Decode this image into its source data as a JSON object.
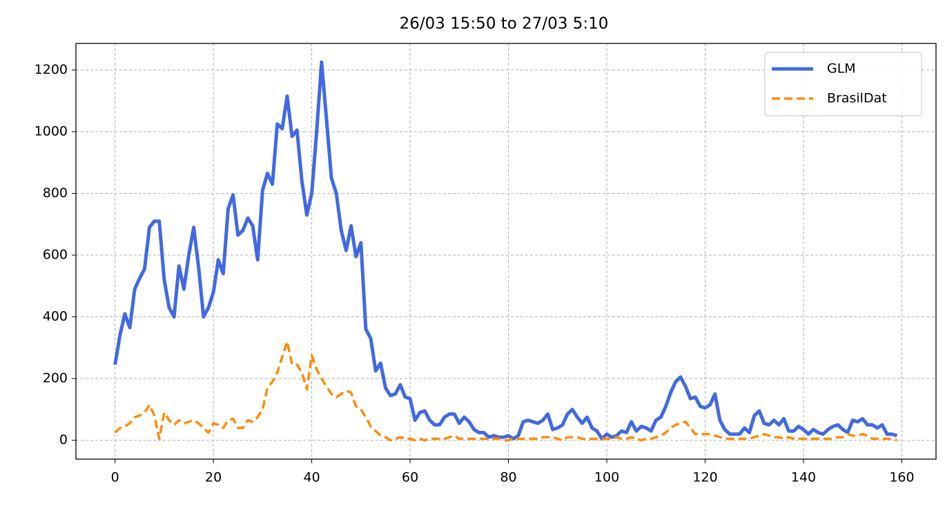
{
  "chart_data": {
    "type": "line",
    "title": "26/03 15:50 to 27/03 5:10",
    "x": [
      0,
      1,
      2,
      3,
      4,
      5,
      6,
      7,
      8,
      9,
      10,
      11,
      12,
      13,
      14,
      15,
      16,
      17,
      18,
      19,
      20,
      21,
      22,
      23,
      24,
      25,
      26,
      27,
      28,
      29,
      30,
      31,
      32,
      33,
      34,
      35,
      36,
      37,
      38,
      39,
      40,
      41,
      42,
      43,
      44,
      45,
      46,
      47,
      48,
      49,
      50,
      51,
      52,
      53,
      54,
      55,
      56,
      57,
      58,
      59,
      60,
      61,
      62,
      63,
      64,
      65,
      66,
      67,
      68,
      69,
      70,
      71,
      72,
      73,
      74,
      75,
      76,
      77,
      78,
      79,
      80,
      81,
      82,
      83,
      84,
      85,
      86,
      87,
      88,
      89,
      90,
      91,
      92,
      93,
      94,
      95,
      96,
      97,
      98,
      99,
      100,
      101,
      102,
      103,
      104,
      105,
      106,
      107,
      108,
      109,
      110,
      111,
      112,
      113,
      114,
      115,
      116,
      117,
      118,
      119,
      120,
      121,
      122,
      123,
      124,
      125,
      126,
      127,
      128,
      129,
      130,
      131,
      132,
      133,
      134,
      135,
      136,
      137,
      138,
      139,
      140,
      141,
      142,
      143,
      144,
      145,
      146,
      147,
      148,
      149,
      150,
      151,
      152,
      153,
      154,
      155,
      156,
      157,
      158,
      159
    ],
    "series": [
      {
        "name": "GLM",
        "color": "#4169e1",
        "style": "solid",
        "values": [
          245,
          340,
          410,
          365,
          490,
          525,
          555,
          690,
          710,
          710,
          520,
          430,
          400,
          565,
          490,
          600,
          690,
          560,
          400,
          430,
          480,
          585,
          540,
          750,
          795,
          665,
          680,
          720,
          695,
          585,
          810,
          865,
          830,
          1025,
          1010,
          1115,
          985,
          1005,
          840,
          730,
          800,
          1000,
          1225,
          1040,
          850,
          800,
          680,
          615,
          695,
          595,
          640,
          360,
          330,
          225,
          250,
          170,
          145,
          150,
          180,
          140,
          135,
          65,
          90,
          95,
          65,
          50,
          50,
          75,
          85,
          85,
          55,
          75,
          60,
          35,
          25,
          25,
          10,
          15,
          10,
          10,
          15,
          5,
          15,
          60,
          65,
          60,
          55,
          65,
          85,
          35,
          40,
          50,
          85,
          100,
          75,
          55,
          75,
          40,
          30,
          5,
          20,
          10,
          15,
          30,
          25,
          60,
          30,
          45,
          40,
          30,
          65,
          75,
          110,
          155,
          190,
          205,
          175,
          135,
          140,
          110,
          105,
          115,
          150,
          65,
          35,
          20,
          20,
          20,
          40,
          25,
          80,
          95,
          55,
          50,
          65,
          50,
          70,
          30,
          30,
          45,
          35,
          20,
          35,
          25,
          20,
          35,
          45,
          50,
          35,
          25,
          65,
          60,
          70,
          50,
          50,
          40,
          50,
          20,
          20,
          15
        ]
      },
      {
        "name": "BrasilDat",
        "color": "#ff8c00",
        "style": "dashed",
        "values": [
          25,
          40,
          45,
          55,
          75,
          80,
          90,
          115,
          80,
          5,
          90,
          65,
          50,
          65,
          55,
          60,
          65,
          55,
          40,
          25,
          55,
          50,
          40,
          65,
          70,
          40,
          40,
          65,
          60,
          75,
          100,
          170,
          190,
          220,
          270,
          320,
          245,
          245,
          220,
          165,
          275,
          230,
          200,
          175,
          150,
          140,
          150,
          160,
          155,
          110,
          100,
          75,
          45,
          30,
          15,
          10,
          0,
          5,
          10,
          5,
          5,
          0,
          5,
          0,
          5,
          5,
          5,
          5,
          10,
          15,
          5,
          5,
          5,
          5,
          5,
          5,
          5,
          5,
          5,
          0,
          0,
          5,
          5,
          5,
          5,
          5,
          5,
          10,
          10,
          10,
          5,
          0,
          10,
          10,
          10,
          5,
          5,
          5,
          5,
          5,
          5,
          5,
          10,
          5,
          5,
          10,
          5,
          0,
          5,
          5,
          10,
          15,
          25,
          40,
          50,
          55,
          60,
          40,
          20,
          20,
          20,
          20,
          15,
          10,
          5,
          5,
          5,
          5,
          5,
          5,
          10,
          15,
          20,
          15,
          10,
          10,
          5,
          10,
          5,
          5,
          5,
          5,
          5,
          5,
          5,
          5,
          5,
          10,
          10,
          20,
          15,
          15,
          20,
          15,
          5,
          5,
          5,
          5,
          5,
          0
        ]
      }
    ],
    "xlim": [
      -7.95,
      166.95
    ],
    "ylim": [
      -61,
      1286
    ],
    "xticks": [
      0,
      20,
      40,
      60,
      80,
      100,
      120,
      140,
      160
    ],
    "yticks": [
      0,
      200,
      400,
      600,
      800,
      1000,
      1200
    ],
    "grid": true,
    "legend": "upper right"
  }
}
